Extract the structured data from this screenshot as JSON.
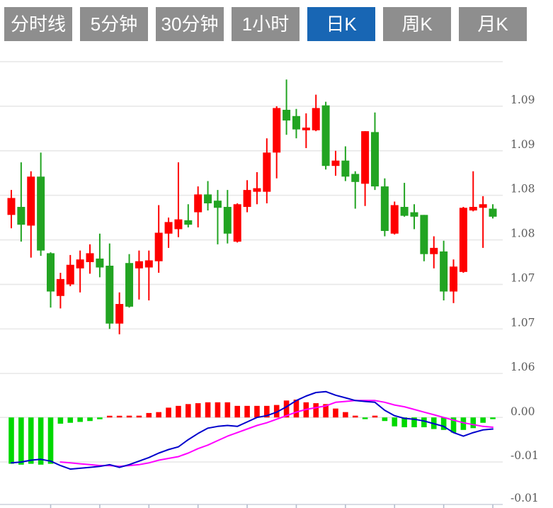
{
  "tabs": {
    "items": [
      "分时线",
      "5分钟",
      "30分钟",
      "1小时",
      "日K",
      "周K",
      "月K"
    ],
    "active": "日K"
  },
  "y_axis": {
    "price_labels": [
      "1.09",
      "1.09",
      "1.08",
      "1.08",
      "1.07",
      "1.07",
      "1.06"
    ],
    "macd_labels": [
      "0.00",
      "-0.01",
      "-0.01"
    ]
  },
  "colors": {
    "up_candle": "#fe0000",
    "down_candle": "#22a422",
    "hist_positive": "#fe0000",
    "hist_negative": "#00d800",
    "dif_line": "#0000cc",
    "dea_line": "#ff00ff",
    "gridline": "#e8e8e8",
    "axis_line": "#ccd1dc",
    "tick": "#b4bccd",
    "axis_text": "#5c5c5c",
    "tab_bg": "#8e8e8e",
    "tab_active_bg": "#1866b4",
    "tab_text": "#ffffff"
  },
  "chart_data": {
    "type": "candlestick",
    "title": "",
    "panels": [
      "price",
      "macd"
    ],
    "grid": true,
    "legend": "none",
    "price_axis": {
      "grid_max": 1.095,
      "grid_min": 1.06,
      "grid_step": 0.005,
      "tick_labels": [
        "1.09",
        "1.09",
        "1.08",
        "1.08",
        "1.07",
        "1.07",
        "1.06"
      ]
    },
    "x_axis": {
      "candle_count": 50,
      "tick_every": 5,
      "tick_labels": []
    },
    "candles_ohlc": [
      [
        1.0778,
        1.0806,
        1.0763,
        1.0797
      ],
      [
        1.0787,
        1.0837,
        1.0748,
        1.0767
      ],
      [
        1.0766,
        1.0827,
        1.073,
        1.0821
      ],
      [
        1.0821,
        1.0848,
        1.0732,
        1.0738
      ],
      [
        1.0735,
        1.0736,
        1.0674,
        1.0692
      ],
      [
        1.0687,
        1.0713,
        1.0673,
        1.0706
      ],
      [
        1.07,
        1.0733,
        1.0698,
        1.0722
      ],
      [
        1.0718,
        1.0738,
        1.0691,
        1.0728
      ],
      [
        1.0725,
        1.0745,
        1.0712,
        1.0735
      ],
      [
        1.0729,
        1.0757,
        1.0708,
        1.0719
      ],
      [
        1.0721,
        1.0746,
        1.065,
        1.0656
      ],
      [
        1.0656,
        1.0691,
        1.0644,
        1.0678
      ],
      [
        1.0724,
        1.0734,
        1.0674,
        1.0675
      ],
      [
        1.0718,
        1.0738,
        1.0683,
        1.0726
      ],
      [
        1.0719,
        1.0738,
        1.0682,
        1.0727
      ],
      [
        1.0726,
        1.0789,
        1.0713,
        1.0758
      ],
      [
        1.0757,
        1.0775,
        1.0741,
        1.077
      ],
      [
        1.0762,
        1.0837,
        1.0753,
        1.0773
      ],
      [
        1.0772,
        1.079,
        1.0764,
        1.0767
      ],
      [
        1.0781,
        1.081,
        1.0764,
        1.0801
      ],
      [
        1.0801,
        1.0816,
        1.0783,
        1.0791
      ],
      [
        1.0794,
        1.0806,
        1.0745,
        1.0786
      ],
      [
        1.0787,
        1.0806,
        1.0746,
        1.0757
      ],
      [
        1.0748,
        1.0791,
        1.0747,
        1.079
      ],
      [
        1.0787,
        1.0817,
        1.0781,
        1.0806
      ],
      [
        1.0804,
        1.0826,
        1.079,
        1.0808
      ],
      [
        1.0804,
        1.0864,
        1.0791,
        1.0848
      ],
      [
        1.0848,
        1.09,
        1.0819,
        1.0898
      ],
      [
        1.0896,
        1.093,
        1.0868,
        1.0884
      ],
      [
        1.0889,
        1.0897,
        1.0864,
        1.0874
      ],
      [
        1.0873,
        1.0892,
        1.0853,
        1.0876
      ],
      [
        1.0873,
        1.0913,
        1.0872,
        1.0898
      ],
      [
        1.0901,
        1.0905,
        1.0829,
        1.0833
      ],
      [
        1.0833,
        1.085,
        1.0822,
        1.0839
      ],
      [
        1.0839,
        1.0855,
        1.0816,
        1.0821
      ],
      [
        1.0824,
        1.0827,
        1.0785,
        1.0815
      ],
      [
        1.0813,
        1.0872,
        1.0788,
        1.0872
      ],
      [
        1.0871,
        1.0893,
        1.0806,
        1.081
      ],
      [
        1.081,
        1.0819,
        1.0754,
        1.076
      ],
      [
        1.0757,
        1.0793,
        1.0756,
        1.0789
      ],
      [
        1.0787,
        1.0814,
        1.0776,
        1.0777
      ],
      [
        1.0781,
        1.079,
        1.0762,
        1.0776
      ],
      [
        1.0778,
        1.0778,
        1.0726,
        1.0734
      ],
      [
        1.0734,
        1.0754,
        1.0718,
        1.0741
      ],
      [
        1.0737,
        1.0749,
        1.0682,
        1.0692
      ],
      [
        1.0692,
        1.0728,
        1.0679,
        1.072
      ],
      [
        1.0714,
        1.0787,
        1.0713,
        1.0786
      ],
      [
        1.0783,
        1.0827,
        1.0782,
        1.0787
      ],
      [
        1.0786,
        1.0799,
        1.0741,
        1.079
      ],
      [
        1.0785,
        1.079,
        1.0774,
        1.0776
      ]
    ],
    "macd": {
      "axis_tick_labels": [
        "0.00",
        "-0.01",
        "-0.01"
      ],
      "axis_values": [
        0.0,
        -0.005,
        -0.01
      ],
      "histogram": [
        -0.0052,
        -0.0053,
        -0.0052,
        -0.0053,
        -0.0052,
        -0.0007,
        -0.0006,
        -0.0005,
        -0.0004,
        -0.0002,
        0.0001,
        0.0001,
        0.0002,
        0.0002,
        0.0005,
        0.0006,
        0.0011,
        0.0013,
        0.0015,
        0.0016,
        0.0017,
        0.0017,
        0.0017,
        0.0013,
        0.0013,
        0.0013,
        0.0013,
        0.0014,
        0.0019,
        0.002,
        0.0017,
        0.0016,
        0.0015,
        0.001,
        0.0006,
        0.0002,
        -0.0001,
        0.0002,
        -0.0004,
        -0.001,
        -0.0011,
        -0.0011,
        -0.0011,
        -0.0013,
        -0.0014,
        -0.0017,
        -0.0014,
        -0.0012,
        -0.0006,
        -0.0001
      ],
      "dif": [
        -0.0051,
        -0.005,
        -0.0048,
        -0.0047,
        -0.0049,
        -0.0054,
        -0.0058,
        -0.0057,
        -0.0056,
        -0.0055,
        -0.0053,
        -0.0056,
        -0.0053,
        -0.0049,
        -0.0045,
        -0.004,
        -0.0036,
        -0.0033,
        -0.0025,
        -0.0018,
        -0.0012,
        -0.001,
        -0.0009,
        -0.001,
        -0.0005,
        0.0,
        0.0002,
        0.0006,
        0.0012,
        0.0019,
        0.0024,
        0.0028,
        0.0029,
        0.0025,
        0.0022,
        0.0019,
        0.0018,
        0.0017,
        0.0008,
        0.0002,
        -0.0001,
        -0.0002,
        -0.0004,
        -0.0007,
        -0.001,
        -0.0017,
        -0.0021,
        -0.0017,
        -0.0014,
        -0.0013
      ],
      "dea_start_index": 5,
      "dea": [
        -0.005,
        -0.0051,
        -0.0052,
        -0.0053,
        -0.0054,
        -0.0054,
        -0.0055,
        -0.0054,
        -0.0053,
        -0.0051,
        -0.0048,
        -0.0046,
        -0.0044,
        -0.004,
        -0.0035,
        -0.0031,
        -0.0026,
        -0.0021,
        -0.0017,
        -0.0013,
        -0.0009,
        -0.0006,
        -0.0002,
        0.0002,
        0.0006,
        0.0009,
        0.0011,
        0.0013,
        0.0017,
        0.0018,
        0.0019,
        0.0019,
        0.0019,
        0.0017,
        0.0014,
        0.0012,
        0.0009,
        0.0006,
        0.0003,
        0.0,
        -0.0003,
        -0.0006,
        -0.0008,
        -0.001,
        -0.0011
      ]
    }
  }
}
